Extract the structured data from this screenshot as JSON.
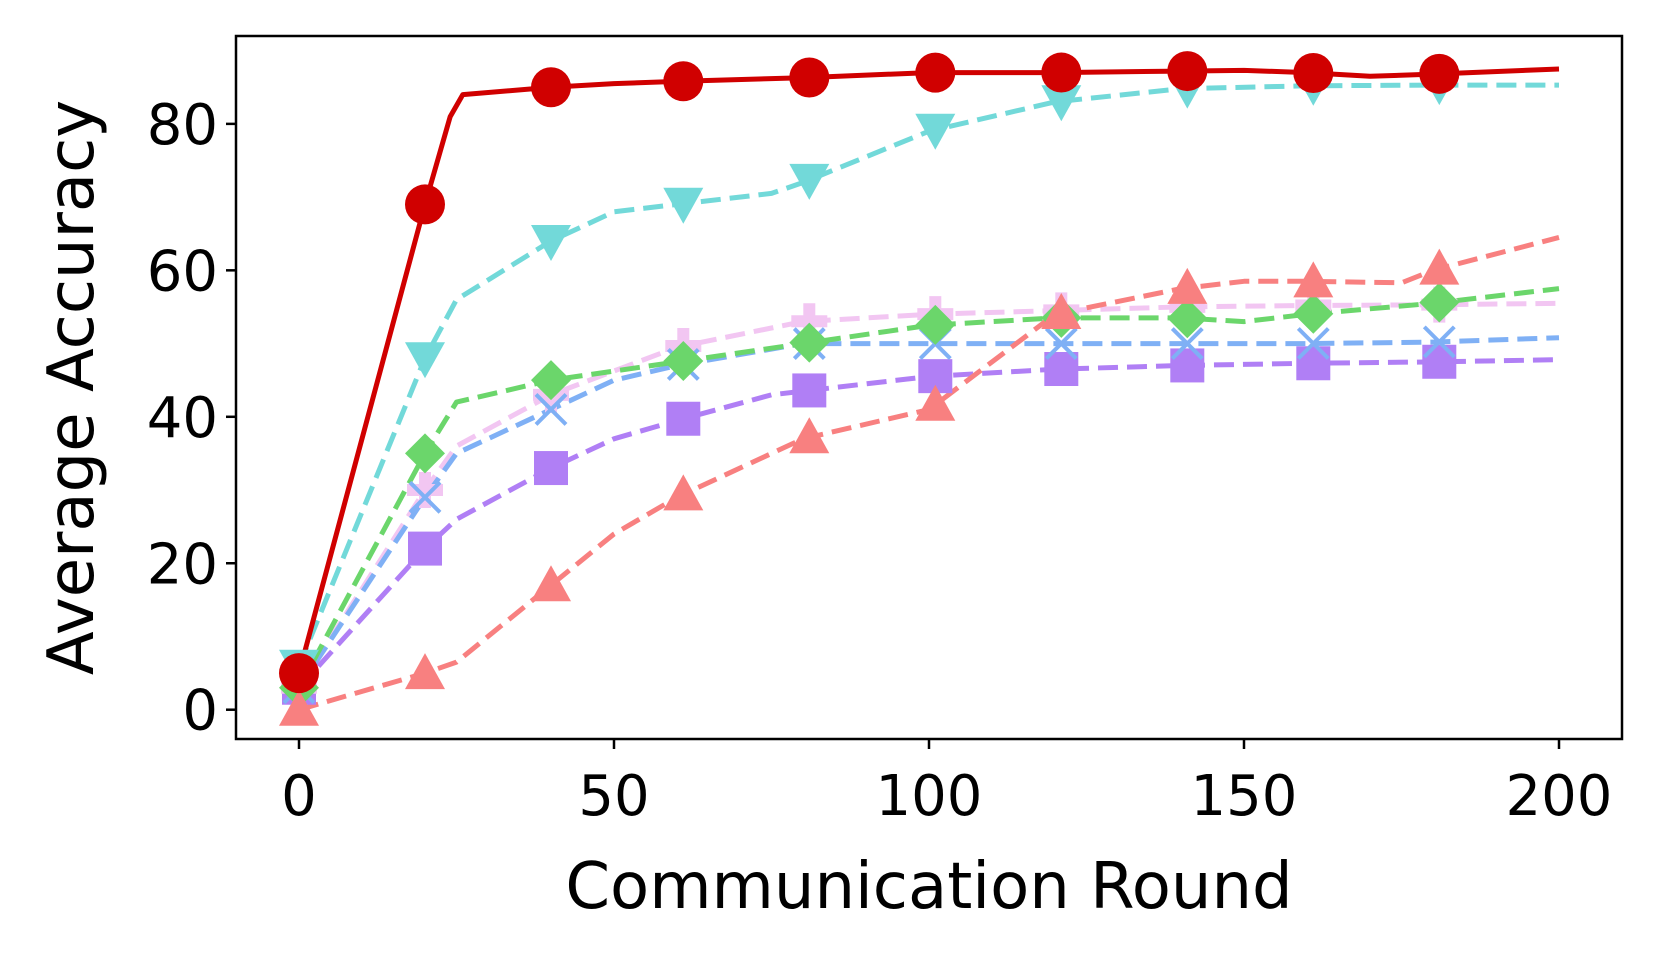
{
  "chart_data": {
    "type": "line",
    "title": "",
    "xlabel": "Communication Round",
    "ylabel": "Average Accuracy",
    "xlim": [
      -10,
      210
    ],
    "ylim": [
      -4,
      92
    ],
    "xticks": [
      0,
      50,
      100,
      150,
      200
    ],
    "yticks": [
      0,
      20,
      40,
      60,
      80
    ],
    "grid": false,
    "legend": "none",
    "series": [
      {
        "color": "#d00000",
        "linestyle": "solid",
        "marker": "circle",
        "x": [
          0,
          20,
          24,
          26,
          40,
          50,
          60,
          80,
          100,
          120,
          140,
          150,
          160,
          170,
          180,
          200
        ],
        "y": [
          5,
          69,
          81,
          84,
          85,
          85.5,
          85.8,
          86.3,
          87,
          87,
          87.2,
          87.3,
          87,
          86.5,
          86.8,
          87.5
        ],
        "marker_x": [
          0,
          20,
          40,
          61,
          81,
          101,
          121,
          141,
          161,
          181
        ]
      },
      {
        "color": "#72d9d9",
        "linestyle": "dashed",
        "marker": "triangle-down",
        "x": [
          0,
          20,
          25,
          40,
          50,
          60,
          75,
          80,
          100,
          120,
          140,
          160,
          180,
          200
        ],
        "y": [
          6,
          48,
          56,
          64,
          68,
          69,
          70.5,
          72,
          79,
          83,
          84.8,
          85.2,
          85.3,
          85.3
        ],
        "marker_x": [
          0,
          20,
          40,
          61,
          81,
          101,
          121,
          141,
          161,
          181
        ]
      },
      {
        "color": "#f88080",
        "linestyle": "dashed",
        "marker": "triangle-up",
        "x": [
          0,
          20,
          25,
          40,
          50,
          60,
          80,
          100,
          120,
          140,
          150,
          160,
          175,
          180,
          200
        ],
        "y": [
          0,
          5,
          6.5,
          17,
          24,
          29,
          37,
          41,
          54,
          57.5,
          58.5,
          58.5,
          58.3,
          60,
          64.5
        ],
        "marker_x": [
          0,
          20,
          40,
          61,
          81,
          101,
          121,
          141,
          161,
          181
        ]
      },
      {
        "color": "#6bd66b",
        "linestyle": "dashed",
        "marker": "diamond",
        "x": [
          0,
          20,
          25,
          40,
          60,
          80,
          100,
          120,
          140,
          150,
          160,
          180,
          200
        ],
        "y": [
          3,
          35,
          42,
          45,
          47.5,
          50,
          52.5,
          53.5,
          53.5,
          53,
          54,
          55.5,
          57.5
        ],
        "marker_x": [
          0,
          20,
          40,
          61,
          81,
          101,
          121,
          141,
          161,
          181
        ]
      },
      {
        "color": "#7fb0f5",
        "linestyle": "dashed",
        "marker": "x",
        "x": [
          0,
          20,
          25,
          40,
          50,
          60,
          80,
          100,
          120,
          140,
          160,
          180,
          200
        ],
        "y": [
          3,
          29,
          35,
          41,
          45,
          47,
          50,
          50,
          50,
          50,
          50,
          50.2,
          50.8
        ],
        "marker_x": [
          0,
          20,
          40,
          61,
          81,
          101,
          121,
          141,
          161,
          181
        ]
      },
      {
        "color": "#f2c6f2",
        "linestyle": "dashed",
        "marker": "plus",
        "x": [
          0,
          20,
          25,
          40,
          60,
          80,
          100,
          120,
          140,
          160,
          180,
          200
        ],
        "y": [
          3,
          30,
          36,
          43,
          49.5,
          53,
          54,
          54.5,
          55,
          55.2,
          55.3,
          55.5
        ],
        "marker_x": [
          0,
          20,
          40,
          61,
          81,
          101,
          121,
          141,
          161,
          181
        ]
      },
      {
        "color": "#b07ff5",
        "linestyle": "dashed",
        "marker": "square",
        "x": [
          0,
          20,
          25,
          40,
          50,
          60,
          75,
          80,
          100,
          120,
          140,
          160,
          180,
          200
        ],
        "y": [
          3,
          22,
          26,
          33,
          37,
          39.5,
          43,
          43.5,
          45.5,
          46.5,
          47,
          47.3,
          47.5,
          47.8
        ],
        "marker_x": [
          0,
          20,
          40,
          61,
          81,
          101,
          121,
          141,
          161,
          181
        ]
      }
    ]
  }
}
